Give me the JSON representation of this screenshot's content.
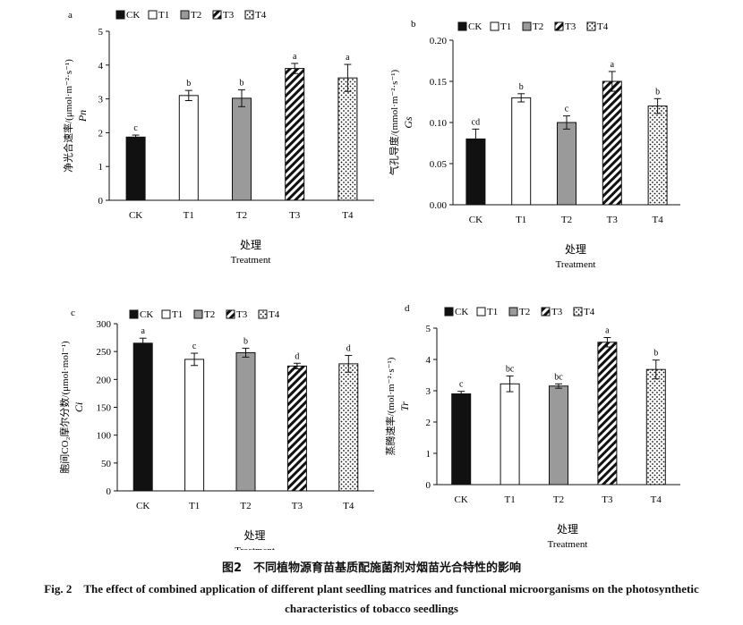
{
  "figure": {
    "caption_cn": "图2　不同植物源育苗基质配施菌剂对烟苗光合特性的影响",
    "caption_en": "Fig. 2　The effect of combined application of different plant seedling matrices and functional microorganisms on the photosynthetic characteristics of tobacco seedlings"
  },
  "styles": {
    "CK": "black",
    "T1": "white",
    "T2": "gray",
    "T3": "hatch",
    "T4": "dots"
  },
  "chart_data": [
    {
      "type": "bar",
      "panel": "a",
      "categories": [
        "CK",
        "T1",
        "T2",
        "T3",
        "T4"
      ],
      "values": [
        1.87,
        3.1,
        3.02,
        3.9,
        3.62
      ],
      "errors": [
        0.06,
        0.15,
        0.25,
        0.15,
        0.4
      ],
      "letters": [
        "c",
        "b",
        "b",
        "a",
        "a"
      ],
      "legend": [
        "CK",
        "T1",
        "T2",
        "T3",
        "T4"
      ],
      "ylabel_cn": "净光合速率/(μmol·m⁻²·s⁻¹)",
      "ylabel_sym": "Pn",
      "xlabel_cn": "处理",
      "xlabel_en": "Treatment",
      "ylim": [
        0,
        5
      ],
      "yticks": [
        0,
        1,
        2,
        3,
        4,
        5
      ],
      "ytick_labels": [
        "0",
        "1",
        "2",
        "3",
        "4",
        "5"
      ]
    },
    {
      "type": "bar",
      "panel": "b",
      "categories": [
        "CK",
        "T1",
        "T2",
        "T3",
        "T4"
      ],
      "values": [
        0.08,
        0.13,
        0.1,
        0.15,
        0.12
      ],
      "errors": [
        0.012,
        0.005,
        0.008,
        0.012,
        0.009
      ],
      "letters": [
        "cd",
        "b",
        "c",
        "a",
        "b"
      ],
      "legend": [
        "CK",
        "T1",
        "T2",
        "T3",
        "T4"
      ],
      "ylabel_cn": "气孔导度/(mmol·m⁻²·s⁻¹)",
      "ylabel_sym": "Gs",
      "xlabel_cn": "处理",
      "xlabel_en": "Treatment",
      "ylim": [
        0,
        0.2
      ],
      "yticks": [
        0,
        0.05,
        0.1,
        0.15,
        0.2
      ],
      "ytick_labels": [
        "0.00",
        "0.05",
        "0.10",
        "0.15",
        "0.20"
      ]
    },
    {
      "type": "bar",
      "panel": "c",
      "categories": [
        "CK",
        "T1",
        "T2",
        "T3",
        "T4"
      ],
      "values": [
        265,
        236,
        248,
        224,
        228
      ],
      "errors": [
        9,
        11,
        8,
        5,
        15
      ],
      "letters": [
        "a",
        "c",
        "b",
        "d",
        "d"
      ],
      "legend": [
        "CK",
        "T1",
        "T2",
        "T3",
        "T4"
      ],
      "ylabel_cn": "胞间CO₂摩尔分数/(μmol·mol⁻¹)",
      "ylabel_sym": "Ci",
      "xlabel_cn": "处理",
      "xlabel_en": "Treatment",
      "ylim": [
        0,
        300
      ],
      "yticks": [
        0,
        50,
        100,
        150,
        200,
        250,
        300
      ],
      "ytick_labels": [
        "0",
        "50",
        "100",
        "150",
        "200",
        "250",
        "300"
      ]
    },
    {
      "type": "bar",
      "panel": "d",
      "categories": [
        "CK",
        "T1",
        "T2",
        "T3",
        "T4"
      ],
      "values": [
        2.9,
        3.22,
        3.15,
        4.55,
        3.68
      ],
      "errors": [
        0.08,
        0.25,
        0.07,
        0.15,
        0.3
      ],
      "letters": [
        "c",
        "bc",
        "bc",
        "a",
        "b"
      ],
      "legend": [
        "CK",
        "T1",
        "T2",
        "T3",
        "T4"
      ],
      "ylabel_cn": "蒸腾速率/(mol·m⁻²·s⁻¹)",
      "ylabel_sym": "Tr",
      "xlabel_cn": "处理",
      "xlabel_en": "Treatment",
      "ylim": [
        0,
        5
      ],
      "yticks": [
        0,
        1,
        2,
        3,
        4,
        5
      ],
      "ytick_labels": [
        "0",
        "1",
        "2",
        "3",
        "4",
        "5"
      ]
    }
  ]
}
